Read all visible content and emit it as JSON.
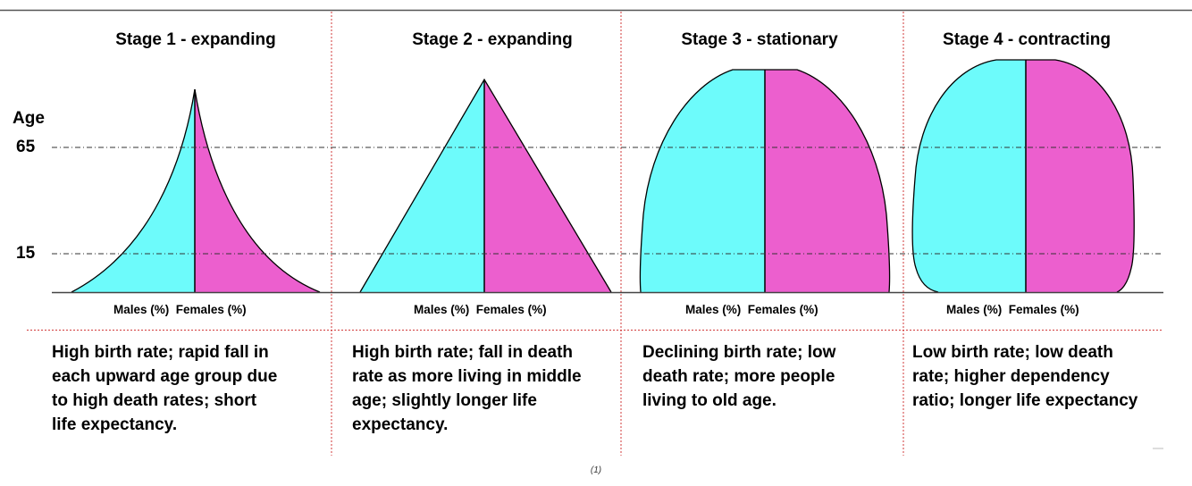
{
  "axis": {
    "title": "Age",
    "ticks": [
      "65",
      "15"
    ]
  },
  "stages": [
    {
      "title": "Stage 1 - expanding",
      "males": "Males (%)",
      "females": "Females (%)",
      "description": [
        "High birth rate; rapid fall in",
        "each upward age group due",
        "to high death rates; short",
        "life expectancy."
      ]
    },
    {
      "title": "Stage 2 - expanding",
      "males": "Males (%)",
      "females": "Females (%)",
      "description": [
        "High birth rate; fall in death",
        "rate as more living in middle",
        "age; slightly longer life",
        "expectancy."
      ]
    },
    {
      "title": "Stage 3 - stationary",
      "males": "Males (%)",
      "females": "Females (%)",
      "description": [
        "Declining birth rate; low",
        "death rate; more people",
        "living to old age."
      ]
    },
    {
      "title": "Stage 4 - contracting",
      "males": "Males (%)",
      "females": "Females (%)",
      "description": [
        "Low birth rate; low death",
        "rate; higher dependency",
        "ratio; longer life expectancy"
      ]
    }
  ],
  "caption": "(1)",
  "colors": {
    "males": "#6dfbfb",
    "females": "#ec5fce",
    "divider": "#d23a3a"
  }
}
